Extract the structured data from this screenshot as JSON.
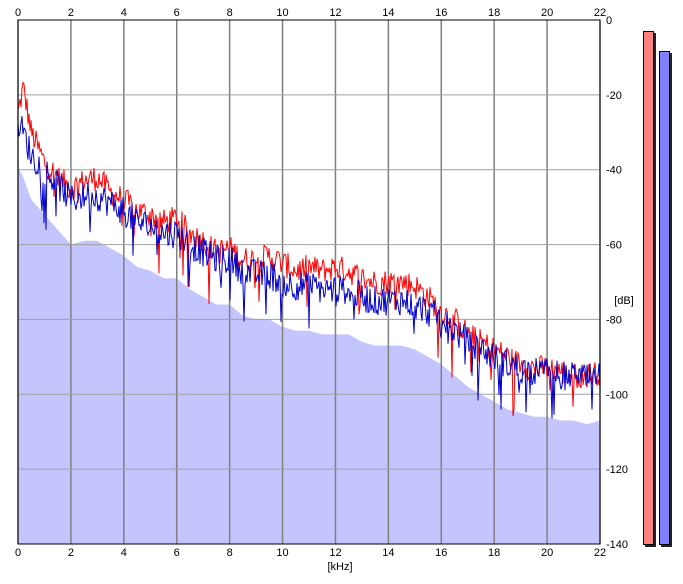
{
  "chart_data": {
    "type": "area",
    "x_unit": "[kHz]",
    "y_unit": "[dB]",
    "xlim": [
      0,
      22
    ],
    "ylim": [
      -140,
      0
    ],
    "x_ticks": [
      0,
      2,
      4,
      6,
      8,
      10,
      12,
      14,
      16,
      18,
      20,
      22
    ],
    "y_ticks": [
      0,
      -20,
      -40,
      -60,
      -80,
      -100,
      -120,
      -140
    ],
    "grid": true,
    "series": [
      {
        "color": "#ff0000",
        "x": [
          0,
          0.2,
          0.5,
          1,
          1.5,
          2,
          2.5,
          3,
          3.5,
          4,
          4.5,
          5,
          5.5,
          6,
          6.5,
          7,
          7.5,
          8,
          8.5,
          9,
          9.5,
          10,
          10.5,
          11,
          11.5,
          12,
          12.5,
          13,
          13.5,
          14,
          14.5,
          15,
          15.5,
          16,
          16.5,
          17,
          17.5,
          18,
          18.5,
          19,
          19.5,
          20,
          20.5,
          21,
          21.5,
          22
        ],
        "y": [
          -25,
          -18,
          -30,
          -38,
          -42,
          -45,
          -43,
          -42,
          -46,
          -48,
          -51,
          -52,
          -54,
          -53,
          -57,
          -59,
          -62,
          -61,
          -64,
          -64,
          -63,
          -65,
          -67,
          -66,
          -67,
          -66,
          -67,
          -69,
          -70,
          -70,
          -70,
          -71,
          -74,
          -78,
          -80,
          -84,
          -86,
          -88,
          -90,
          -92,
          -93,
          -93,
          -94,
          -95,
          -95,
          -94
        ]
      },
      {
        "color": "#0000cc",
        "x": [
          0,
          0.2,
          0.5,
          1,
          1.5,
          2,
          2.5,
          3,
          3.5,
          4,
          4.5,
          5,
          5.5,
          6,
          6.5,
          7,
          7.5,
          8,
          8.5,
          9,
          9.5,
          10,
          10.5,
          11,
          11.5,
          12,
          12.5,
          13,
          13.5,
          14,
          14.5,
          15,
          15.5,
          16,
          16.5,
          17,
          17.5,
          18,
          18.5,
          19,
          19.5,
          20,
          20.5,
          21,
          21.5,
          22
        ],
        "y": [
          -27,
          -30,
          -36,
          -40,
          -44,
          -48,
          -47,
          -47,
          -49,
          -51,
          -54,
          -55,
          -57,
          -57,
          -60,
          -62,
          -64,
          -64,
          -67,
          -68,
          -68,
          -70,
          -71,
          -71,
          -72,
          -72,
          -72,
          -74,
          -75,
          -75,
          -75,
          -76,
          -78,
          -80,
          -83,
          -86,
          -88,
          -90,
          -92,
          -93,
          -94,
          -94,
          -95,
          -95,
          -96,
          -95
        ]
      }
    ],
    "fill_color": "#c4c4ff"
  },
  "meters": [
    {
      "color": "#ff8080",
      "level": 1.0
    },
    {
      "color": "#8080ff",
      "level": 0.97
    }
  ]
}
